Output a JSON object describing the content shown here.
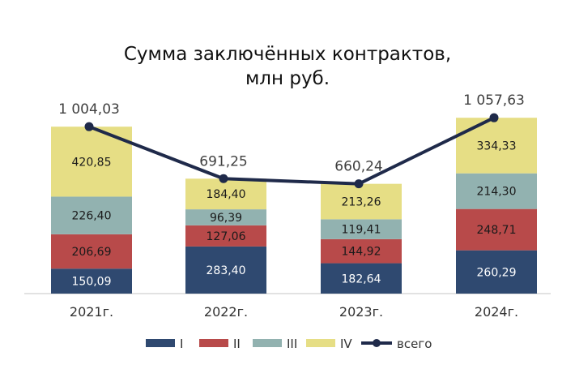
{
  "colors": {
    "I": "#2F4970",
    "II": "#B84A4A",
    "III": "#92B2B0",
    "IV": "#E6DE85",
    "total_line": "#1F2A4A",
    "axis": "#D9D9D9"
  },
  "chart_data": {
    "type": "bar",
    "stacked": true,
    "title_lines": [
      "Сумма заключённых контрактов,",
      "млн руб."
    ],
    "categories": [
      "2021г.",
      "2022г.",
      "2023г.",
      "2024г."
    ],
    "series": [
      {
        "name": "I",
        "color_key": "I",
        "values": [
          150.09,
          283.4,
          182.64,
          260.29
        ],
        "labels": [
          "150,09",
          "283,40",
          "182,64",
          "260,29"
        ]
      },
      {
        "name": "II",
        "color_key": "II",
        "values": [
          206.69,
          127.06,
          144.92,
          248.71
        ],
        "labels": [
          "206,69",
          "127,06",
          "144,92",
          "248,71"
        ]
      },
      {
        "name": "III",
        "color_key": "III",
        "values": [
          226.4,
          96.39,
          119.41,
          214.3
        ],
        "labels": [
          "226,40",
          "96,39",
          "119,41",
          "214,30"
        ]
      },
      {
        "name": "IV",
        "color_key": "IV",
        "values": [
          420.85,
          184.4,
          213.26,
          334.33
        ],
        "labels": [
          "420,85",
          "184,40",
          "213,26",
          "334,33"
        ]
      }
    ],
    "total": {
      "name": "всего",
      "type": "line",
      "values": [
        1004.03,
        691.25,
        660.24,
        1057.63
      ],
      "labels": [
        "1 004,03",
        "691,25",
        "660,24",
        "1 057,63"
      ]
    },
    "ylim": [
      0,
      1100
    ],
    "grid": false,
    "legend": "bottom"
  }
}
